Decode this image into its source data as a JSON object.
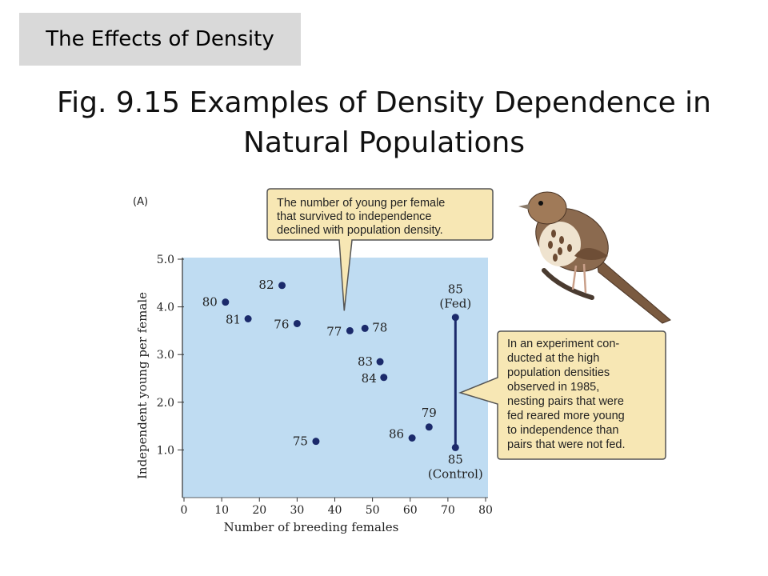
{
  "header": {
    "section_tag": "The Effects of Density",
    "title_line1": "Fig. 9.15  Examples of Density Dependence in",
    "title_line2": "Natural Populations"
  },
  "panel_label": "(A)",
  "colors": {
    "plot_bg": "#bfdcf2",
    "point": "#1b2a6b",
    "callout_bg": "#f7e7b4",
    "callout_border": "#555555"
  },
  "callout_top": {
    "lines": [
      "The number of young per female",
      "that survived to independence",
      "declined with population density."
    ]
  },
  "callout_right": {
    "lines": [
      "In an experiment con-",
      "ducted at the high",
      "population densities",
      "observed in 1985,",
      "nesting pairs that were",
      "fed reared more young",
      "to independence than",
      "pairs that were not fed."
    ]
  },
  "bird_illustration": "song-sparrow",
  "chart_data": {
    "type": "scatter",
    "xlabel": "Number of breeding females",
    "ylabel": "Independent young per female",
    "xlim": [
      0,
      80
    ],
    "ylim": [
      0,
      5.0
    ],
    "xticks": [
      "0",
      "10",
      "20",
      "30",
      "40",
      "50",
      "60",
      "70",
      "80"
    ],
    "yticks": [
      "1.0",
      "2.0",
      "3.0",
      "4.0",
      "5.0"
    ],
    "grid": false,
    "points": [
      {
        "label": "80",
        "x": 11,
        "y": 4.1
      },
      {
        "label": "81",
        "x": 17,
        "y": 3.75
      },
      {
        "label": "82",
        "x": 26,
        "y": 4.45
      },
      {
        "label": "76",
        "x": 30,
        "y": 3.65
      },
      {
        "label": "75",
        "x": 35,
        "y": 1.18
      },
      {
        "label": "77",
        "x": 44,
        "y": 3.5
      },
      {
        "label": "78",
        "x": 48,
        "y": 3.55
      },
      {
        "label": "83",
        "x": 52,
        "y": 2.85
      },
      {
        "label": "84",
        "x": 53,
        "y": 2.52
      },
      {
        "label": "86",
        "x": 60.5,
        "y": 1.25
      },
      {
        "label": "79",
        "x": 65,
        "y": 1.48
      },
      {
        "label": "85",
        "sublabel": "(Fed)",
        "x": 72,
        "y": 3.78
      },
      {
        "label": "85",
        "sublabel": "(Control)",
        "x": 72,
        "y": 1.05
      }
    ],
    "connector": {
      "x": 72,
      "y_from": 1.05,
      "y_to": 3.78
    }
  }
}
